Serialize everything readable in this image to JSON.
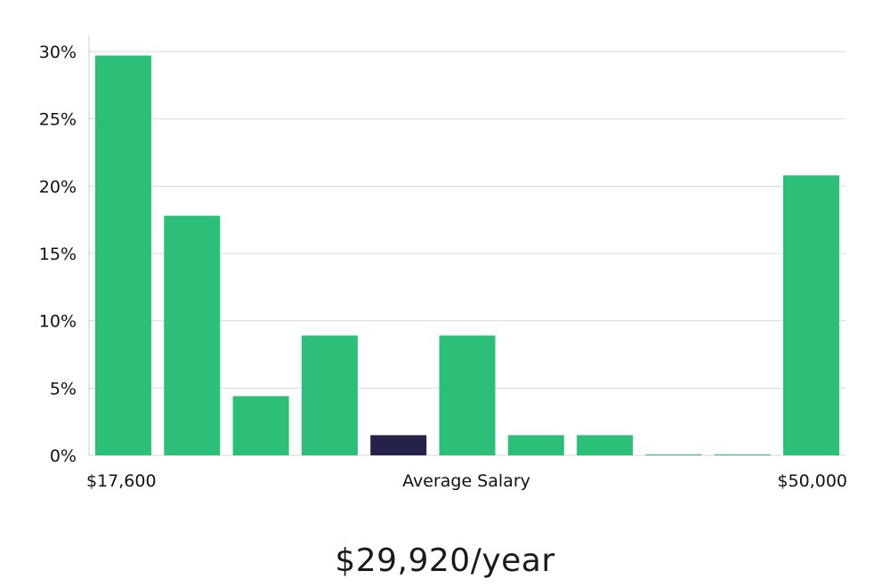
{
  "chart_data": {
    "type": "bar",
    "ylim": [
      0,
      30
    ],
    "yticks": [
      0,
      5,
      10,
      15,
      20,
      25,
      30
    ],
    "ytick_format_suffix": "%",
    "grid": true,
    "values": [
      29.7,
      17.8,
      4.4,
      8.9,
      1.5,
      8.9,
      1.5,
      1.5,
      0.05,
      0.05,
      20.8
    ],
    "highlight_index": 4,
    "colors": {
      "bar": "#2bbf77",
      "highlight": "#25224a",
      "grid": "#d9d9d9",
      "axis": "#cfcfcf"
    },
    "x_labels": {
      "left": "$17,600",
      "center": "Average Salary",
      "right": "$50,000"
    }
  },
  "salary_text": "$29,920/year"
}
